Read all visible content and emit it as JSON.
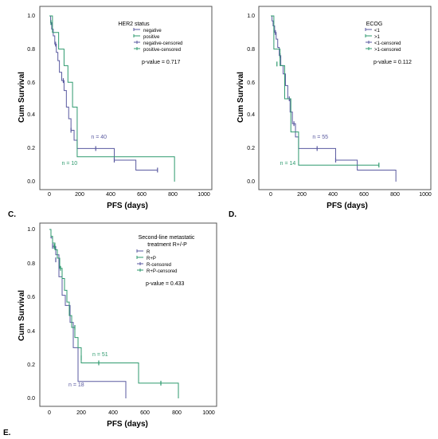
{
  "chart_data": [
    {
      "panel": "C.",
      "type": "line",
      "xlabel": "PFS (days)",
      "ylabel": "Cum Survival",
      "xlim": [
        0,
        1000
      ],
      "ylim": [
        0,
        1.0
      ],
      "xticks": [
        "0",
        "200",
        "400",
        "600",
        "800",
        "1000"
      ],
      "yticks": [
        "0.0",
        "0.2",
        "0.4",
        "0.6",
        "0.8",
        "1.0"
      ],
      "legend_title": "HER2 status",
      "legend": [
        "negative",
        "positive",
        "negative-censored",
        "positive-censored"
      ],
      "annotation": "p-value = 0.717",
      "series": [
        {
          "name": "negative",
          "color": "#5a5aa0",
          "x": [
            0,
            8,
            15,
            25,
            35,
            45,
            55,
            65,
            80,
            95,
            110,
            125,
            140,
            160,
            180,
            420,
            560,
            700
          ],
          "y": [
            1.0,
            0.96,
            0.92,
            0.88,
            0.83,
            0.78,
            0.73,
            0.66,
            0.61,
            0.55,
            0.45,
            0.38,
            0.31,
            0.25,
            0.2,
            0.13,
            0.07,
            0.07
          ],
          "censored": [
            [
              40,
              0.83
            ],
            [
              90,
              0.61
            ],
            [
              140,
              0.31
            ],
            [
              300,
              0.2
            ],
            [
              420,
              0.13
            ],
            [
              700,
              0.07
            ]
          ],
          "label": "n = 40",
          "label_at": [
            270,
            0.26
          ]
        },
        {
          "name": "positive",
          "color": "#2e9a6e",
          "x": [
            0,
            20,
            60,
            95,
            120,
            150,
            180,
            810,
            810
          ],
          "y": [
            1.0,
            0.9,
            0.8,
            0.7,
            0.6,
            0.45,
            0.15,
            0.15,
            0.0
          ],
          "censored": [
            [
              10,
              0.96
            ]
          ],
          "label": "n = 10",
          "label_at": [
            80,
            0.1
          ]
        }
      ]
    },
    {
      "panel": "D.",
      "type": "line",
      "xlabel": "PFS (days)",
      "ylabel": "Cum Survival",
      "xlim": [
        0,
        1000
      ],
      "ylim": [
        0,
        1.0
      ],
      "xticks": [
        "0",
        "200",
        "400",
        "600",
        "800",
        "1000"
      ],
      "yticks": [
        "0.0",
        "0.2",
        "0.4",
        "0.6",
        "0.8",
        "1.0"
      ],
      "legend_title": "ECOG",
      "legend": [
        "<1",
        ">1",
        "<1-censored",
        ">1-censored"
      ],
      "annotation": "p-value = 0.112",
      "series": [
        {
          "name": "<1",
          "color": "#5a5aa0",
          "x": [
            0,
            8,
            15,
            25,
            35,
            45,
            55,
            65,
            80,
            95,
            110,
            125,
            140,
            160,
            180,
            420,
            560,
            810,
            810
          ],
          "y": [
            1.0,
            0.97,
            0.94,
            0.9,
            0.86,
            0.81,
            0.76,
            0.7,
            0.65,
            0.58,
            0.5,
            0.42,
            0.35,
            0.27,
            0.2,
            0.13,
            0.07,
            0.03,
            0.0
          ],
          "censored": [
            [
              30,
              0.9
            ],
            [
              60,
              0.76
            ],
            [
              120,
              0.5
            ],
            [
              150,
              0.35
            ],
            [
              300,
              0.2
            ],
            [
              420,
              0.13
            ]
          ],
          "label": "n = 55",
          "label_at": [
            270,
            0.26
          ]
        },
        {
          "name": ">1",
          "color": "#2e9a6e",
          "x": [
            0,
            20,
            60,
            90,
            130,
            180,
            700
          ],
          "y": [
            1.0,
            0.8,
            0.7,
            0.5,
            0.3,
            0.1,
            0.1
          ],
          "censored": [
            [
              40,
              0.71
            ],
            [
              700,
              0.1
            ]
          ],
          "label": "n = 14",
          "label_at": [
            60,
            0.1
          ]
        }
      ]
    },
    {
      "panel": "E.",
      "type": "line",
      "xlabel": "PFS (days)",
      "ylabel": "Cum Survival",
      "xlim": [
        0,
        1000
      ],
      "ylim": [
        0,
        1.0
      ],
      "xticks": [
        "0",
        "200",
        "400",
        "600",
        "800",
        "1000"
      ],
      "yticks": [
        "0.0",
        "0.2",
        "0.4",
        "0.6",
        "0.8",
        "1.0"
      ],
      "legend_title": "Second-line metastatic treatment R+/-P",
      "legend": [
        "R",
        "R+P",
        "R-censored",
        "R+P-censored"
      ],
      "annotation": "p-value = 0.433",
      "series": [
        {
          "name": "R",
          "color": "#5a5aa0",
          "x": [
            0,
            10,
            20,
            40,
            60,
            80,
            100,
            130,
            150,
            180,
            480,
            480
          ],
          "y": [
            1.0,
            0.95,
            0.9,
            0.85,
            0.72,
            0.61,
            0.55,
            0.45,
            0.3,
            0.1,
            0.1,
            0.0
          ],
          "censored": [
            [
              20,
              0.9
            ],
            [
              40,
              0.82
            ]
          ],
          "label": "n = 18",
          "label_at": [
            120,
            0.07
          ]
        },
        {
          "name": "R+P",
          "color": "#2e9a6e",
          "x": [
            0,
            10,
            20,
            35,
            50,
            65,
            80,
            95,
            110,
            125,
            140,
            160,
            180,
            200,
            560,
            810,
            810
          ],
          "y": [
            1.0,
            0.96,
            0.92,
            0.88,
            0.83,
            0.77,
            0.71,
            0.64,
            0.57,
            0.49,
            0.42,
            0.36,
            0.3,
            0.21,
            0.09,
            0.09,
            0.0
          ],
          "censored": [
            [
              30,
              0.9
            ],
            [
              70,
              0.77
            ],
            [
              160,
              0.42
            ],
            [
              200,
              0.24
            ],
            [
              310,
              0.21
            ],
            [
              700,
              0.09
            ]
          ],
          "label": "n = 51",
          "label_at": [
            270,
            0.25
          ]
        }
      ]
    }
  ]
}
